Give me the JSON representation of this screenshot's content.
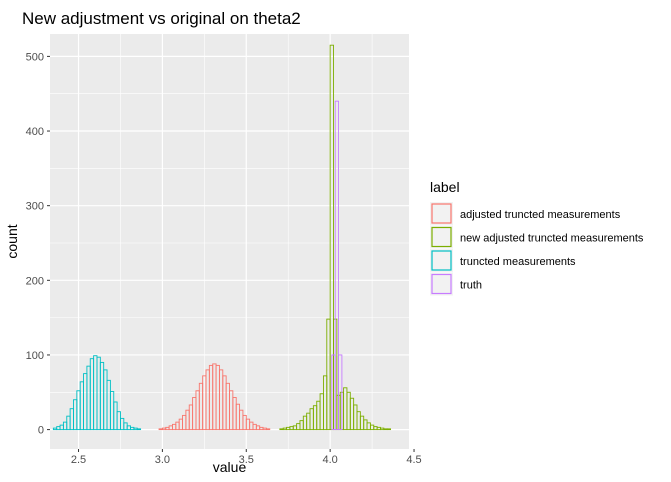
{
  "chart_data": {
    "type": "histogram",
    "title": "New adjustment vs original on theta2",
    "xlabel": "value",
    "ylabel": "count",
    "xlim": [
      2.33,
      4.47
    ],
    "ylim": [
      -26,
      530
    ],
    "x_ticks": [
      2.5,
      3.0,
      3.5,
      4.0,
      4.5
    ],
    "x_tick_labels": [
      "2.5",
      "3.0",
      "3.5",
      "4.0",
      "4.5"
    ],
    "y_ticks": [
      0,
      100,
      200,
      300,
      400,
      500
    ],
    "y_tick_labels": [
      "0",
      "100",
      "200",
      "300",
      "400",
      "500"
    ],
    "grid": true,
    "background": "#ebebeb",
    "bin_width": 0.02,
    "legend": {
      "title": "label",
      "position": "right",
      "entries": [
        {
          "label": "adjusted truncted measurements",
          "color": "#F8766D"
        },
        {
          "label": "new adjusted truncted measurements",
          "color": "#7CAE00"
        },
        {
          "label": "truncted measurements",
          "color": "#00BFC4"
        },
        {
          "label": "truth",
          "color": "#C77CFF"
        }
      ]
    },
    "series": [
      {
        "name": "adjusted truncted measurements",
        "color": "#F8766D",
        "bins_start": 2.98,
        "counts": [
          1,
          2,
          3,
          5,
          7,
          10,
          14,
          19,
          26,
          33,
          43,
          52,
          62,
          72,
          80,
          86,
          88,
          86,
          80,
          72,
          62,
          52,
          43,
          34,
          26,
          19,
          14,
          10,
          7,
          5,
          3,
          2,
          1
        ]
      },
      {
        "name": "new adjusted truncted measurements",
        "color": "#7CAE00",
        "bins_start": 3.7,
        "counts": [
          1,
          2,
          3,
          4,
          5,
          8,
          12,
          18,
          22,
          28,
          32,
          38,
          48,
          72,
          148,
          515,
          148,
          46,
          50,
          56,
          50,
          42,
          33,
          24,
          18,
          13,
          9,
          6,
          4,
          3,
          2,
          1,
          1
        ]
      },
      {
        "name": "truncted measurements",
        "color": "#00BFC4",
        "bins_start": 2.35,
        "counts": [
          2,
          4,
          6,
          10,
          18,
          28,
          40,
          52,
          64,
          75,
          85,
          95,
          99,
          97,
          90,
          80,
          66,
          51,
          37,
          24,
          15,
          9,
          5,
          3,
          2,
          1
        ]
      },
      {
        "name": "truth",
        "color": "#C77CFF",
        "bins_start": 2.35,
        "counts": [
          0,
          0,
          0,
          0,
          0,
          0,
          0,
          0,
          0,
          0,
          0,
          0,
          0,
          0,
          0,
          0,
          0,
          0,
          0,
          0,
          0,
          0,
          0,
          0,
          0,
          0,
          0,
          0,
          0,
          0,
          0,
          0,
          0,
          0,
          0,
          0,
          0,
          0,
          0,
          0,
          0,
          0,
          0,
          0,
          0,
          0,
          0,
          0,
          0,
          0,
          0,
          0,
          0,
          0,
          0,
          0,
          0,
          0,
          0,
          0,
          0,
          0,
          0,
          0,
          0,
          0,
          0,
          0,
          0,
          0,
          0,
          0,
          0,
          0,
          0,
          0,
          0,
          0,
          0,
          0,
          0,
          0,
          0,
          100,
          440,
          100,
          0,
          0,
          0,
          0,
          0,
          0,
          0,
          0,
          0,
          0,
          0,
          0,
          0,
          0,
          0,
          0,
          0,
          0,
          0,
          0
        ]
      }
    ]
  }
}
